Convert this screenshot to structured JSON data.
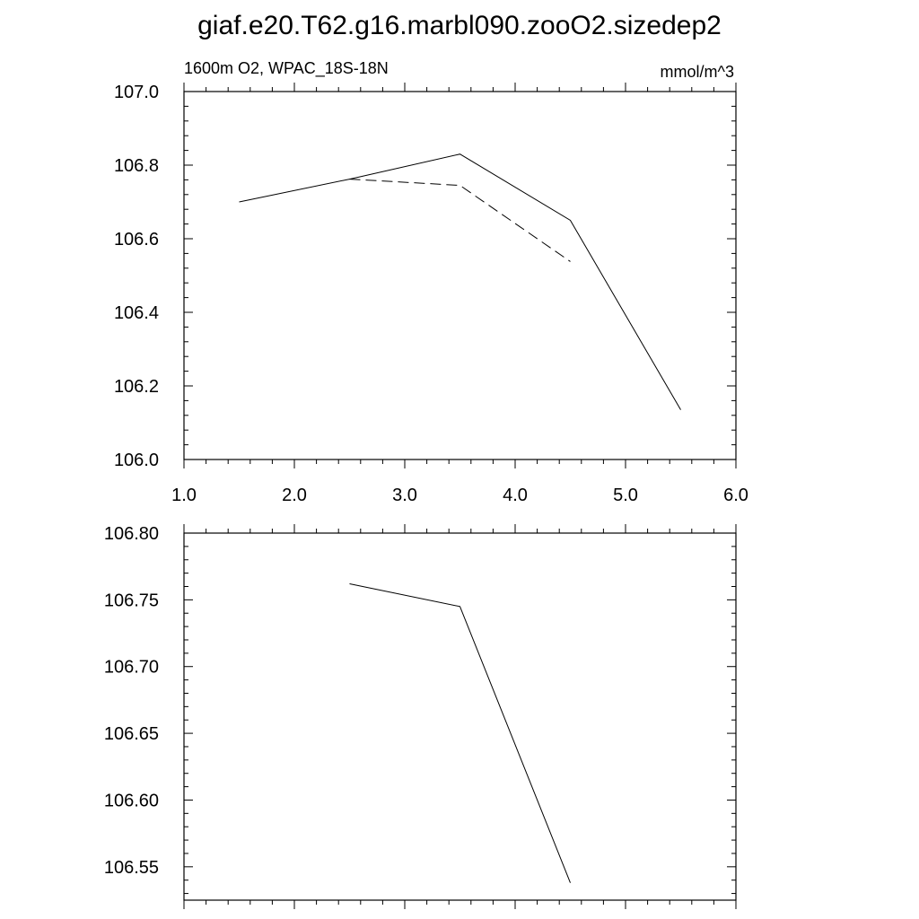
{
  "title": "giaf.e20.T62.g16.marbl090.zooO2.sizedep2",
  "chart_data": [
    {
      "type": "line",
      "left_label": "1600m O2, WPAC_18S-18N",
      "right_label": "mmol/m^3",
      "xlim": [
        1.0,
        6.0
      ],
      "ylim": [
        106.0,
        107.0
      ],
      "x_ticks": [
        1.0,
        2.0,
        3.0,
        4.0,
        5.0,
        6.0
      ],
      "x_tick_labels": [
        "1.0",
        "2.0",
        "3.0",
        "4.0",
        "5.0",
        "6.0"
      ],
      "y_ticks": [
        106.0,
        106.2,
        106.4,
        106.6,
        106.8,
        107.0
      ],
      "y_tick_labels": [
        "106.0",
        "106.2",
        "106.4",
        "106.6",
        "106.8",
        "107.0"
      ],
      "series": [
        {
          "style": "solid",
          "color": "#000000",
          "x": [
            1.5,
            2.5,
            3.5,
            4.5,
            5.5
          ],
          "y": [
            106.7,
            106.762,
            106.83,
            106.65,
            106.135
          ]
        },
        {
          "style": "dashed",
          "color": "#000000",
          "x": [
            2.5,
            3.5,
            4.5
          ],
          "y": [
            106.762,
            106.745,
            106.538
          ]
        }
      ]
    },
    {
      "type": "line",
      "xlim": [
        1.0,
        6.0
      ],
      "ylim": [
        106.525,
        106.8
      ],
      "x_ticks": [
        1.0,
        2.0,
        3.0,
        4.0,
        5.0,
        6.0
      ],
      "y_ticks": [
        106.55,
        106.6,
        106.65,
        106.7,
        106.75,
        106.8
      ],
      "y_tick_labels": [
        "106.55",
        "106.60",
        "106.65",
        "106.70",
        "106.75",
        "106.80"
      ],
      "series": [
        {
          "style": "solid",
          "color": "#000000",
          "x": [
            2.5,
            3.5,
            4.5
          ],
          "y": [
            106.762,
            106.745,
            106.538
          ]
        }
      ]
    }
  ]
}
